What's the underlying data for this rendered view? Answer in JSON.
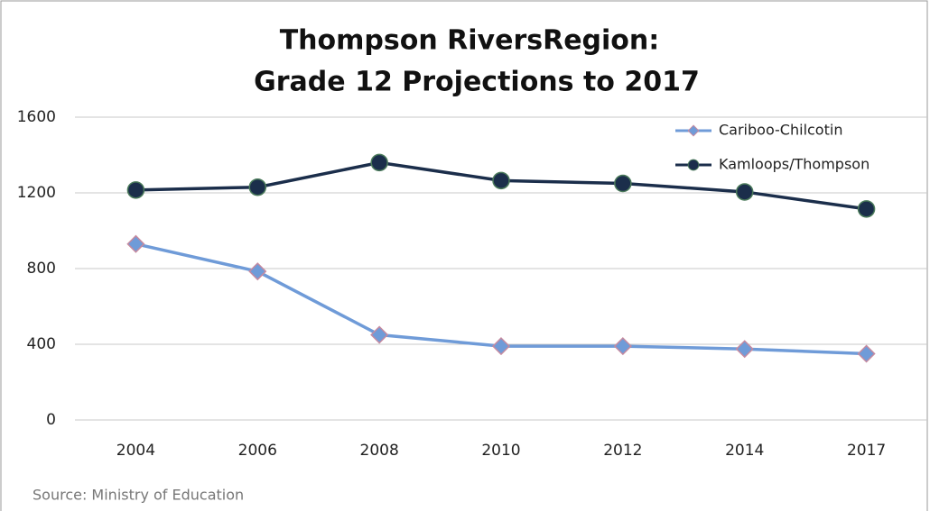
{
  "chart_data": {
    "type": "line",
    "title": [
      "Thompson RiversRegion:",
      "Grade 12 Projections to 2017"
    ],
    "categories": [
      "2004",
      "2006",
      "2008",
      "2010",
      "2012",
      "2014",
      "2017"
    ],
    "series": [
      {
        "name": "Cariboo-Chilcotin",
        "color": "#6f9bd8",
        "marker": "diamond",
        "values": [
          930,
          785,
          450,
          390,
          390,
          375,
          350
        ]
      },
      {
        "name": "Kamloops/Thompson",
        "color": "#1b2e4b",
        "marker": "circle",
        "values": [
          1215,
          1230,
          1360,
          1265,
          1250,
          1205,
          1115
        ]
      }
    ],
    "ylim": [
      0,
      1600
    ],
    "yticks": [
      0,
      400,
      800,
      1200,
      1600
    ],
    "grid": true,
    "legend": "top-right",
    "source": "Source: Ministry of Education"
  }
}
